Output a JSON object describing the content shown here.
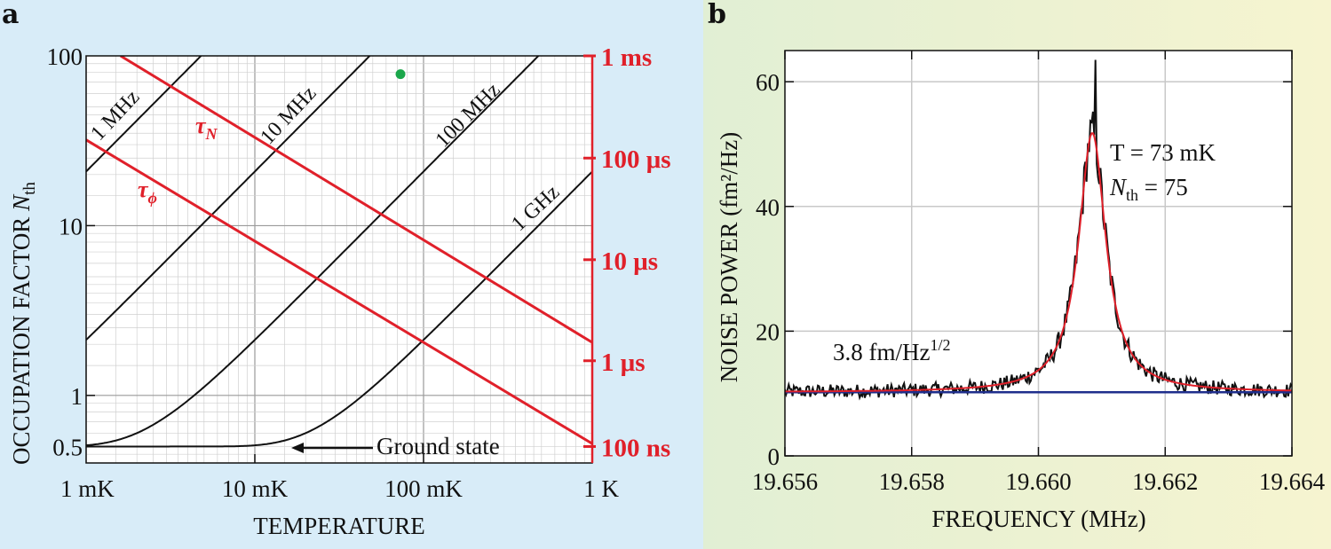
{
  "chart_data": [
    {
      "panel": "a",
      "type": "line",
      "xscale": "log",
      "yscale": "log",
      "xlabel": "TEMPERATURE",
      "ylabel_text": "OCCUPATION FACTOR",
      "ylabel_symbol": "N",
      "ylabel_sub": "th",
      "xlim": [
        0.001,
        1
      ],
      "ylim": [
        0.4,
        100
      ],
      "x_ticks": [
        {
          "value": 0.001,
          "label": "1 mK"
        },
        {
          "value": 0.01,
          "label": "10 mK"
        },
        {
          "value": 0.1,
          "label": "100 mK"
        },
        {
          "value": 1,
          "label": "1 K"
        }
      ],
      "y_ticks": [
        {
          "value": 0.5,
          "label": "0.5"
        },
        {
          "value": 1,
          "label": "1"
        },
        {
          "value": 10,
          "label": "10"
        },
        {
          "value": 100,
          "label": "100"
        }
      ],
      "y2_ticks": [
        {
          "value": 100,
          "label": "1 ms"
        },
        {
          "value": 25,
          "label": "100 μs"
        },
        {
          "value": 6.3,
          "label": "10 μs"
        },
        {
          "value": 1.6,
          "label": "1 μs"
        },
        {
          "value": 0.5,
          "label": "100 ns"
        }
      ],
      "occupation_curves": [
        {
          "name": "1 MHz",
          "freq_hz": 1000000.0
        },
        {
          "name": "10 MHz",
          "freq_hz": 10000000.0
        },
        {
          "name": "100 MHz",
          "freq_hz": 100000000.0
        },
        {
          "name": "1 GHz",
          "freq_hz": 1000000000.0
        }
      ],
      "decoherence_lines": [
        {
          "name": "τ",
          "sub": "N",
          "points": [
            [
              0.0016,
              100
            ],
            [
              1,
              2.05
            ]
          ]
        },
        {
          "name": "τ",
          "sub": "ϕ",
          "points": [
            [
              0.001,
              32
            ],
            [
              1,
              0.52
            ]
          ]
        }
      ],
      "marker": {
        "x": 0.073,
        "y": 78,
        "color": "#1aa64a"
      },
      "annotations": {
        "ground_state": "Ground state"
      },
      "colors": {
        "curve": "#111111",
        "red": "#e0202a",
        "grid": "#b4b4b4"
      }
    },
    {
      "panel": "b",
      "type": "line",
      "xlabel": "FREQUENCY (MHz)",
      "ylabel": "NOISE POWER (fm²/Hz)",
      "xlim": [
        19.656,
        19.664
      ],
      "ylim": [
        0,
        65
      ],
      "x_ticks": [
        "19.656",
        "19.658",
        "19.660",
        "19.662",
        "19.664"
      ],
      "y_ticks": [
        "0",
        "20",
        "40",
        "60"
      ],
      "lorentzian_fit": {
        "background": 10.2,
        "center": 19.66085,
        "peak": 51.8,
        "hwhm": 0.00026
      },
      "baseline": 10.2,
      "data_series": "noisy measured spectrum around the Lorentzian fit, max ~63 at 19.6609 MHz",
      "annotations": {
        "temperature": "T = 73 mK",
        "occupation": "N",
        "occupation_sub": "th",
        "occupation_val": " = 75",
        "noise_floor": "3.8 fm/Hz",
        "noise_floor_exp": "1/2"
      },
      "colors": {
        "data": "#111111",
        "fit": "#e0202a",
        "baseline": "#1f2e8c",
        "grid": "#c8c8c8"
      }
    }
  ],
  "panel_labels": [
    "a",
    "b"
  ]
}
